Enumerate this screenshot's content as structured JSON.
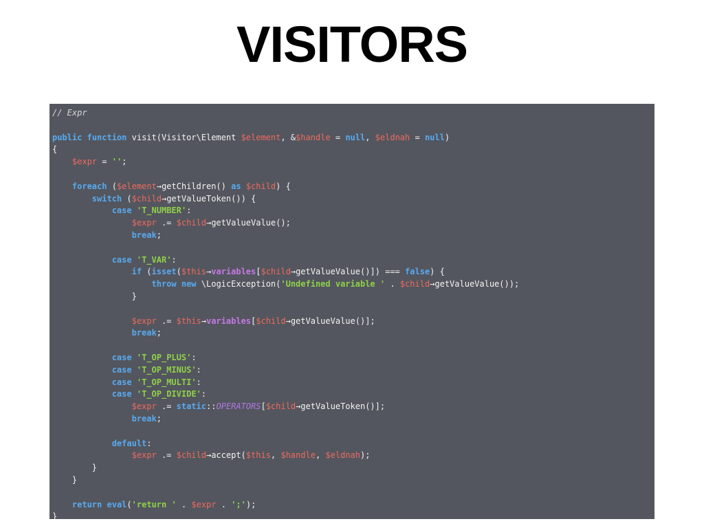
{
  "slide": {
    "title": "VISITORS"
  },
  "colors": {
    "background": "#ffffff",
    "code_background": "#53565e",
    "keyword": "#58aaf0",
    "variable": "#ef6a5f",
    "string": "#8fd14a",
    "property": "#c678e6",
    "constant": "#b179e6",
    "comment": "#d8d8d8",
    "text": "#f4f4f4"
  },
  "code": {
    "language": "php",
    "lines": [
      [
        [
          "cmt",
          "// Expr"
        ]
      ],
      [],
      [
        [
          "kw",
          "public"
        ],
        [
          "plain",
          " "
        ],
        [
          "kw",
          "function"
        ],
        [
          "plain",
          " visit(Visitor\\Element "
        ],
        [
          "var",
          "$element"
        ],
        [
          "plain",
          ", &"
        ],
        [
          "var",
          "$handle"
        ],
        [
          "plain",
          " = "
        ],
        [
          "kw",
          "null"
        ],
        [
          "plain",
          ", "
        ],
        [
          "var",
          "$eldnah"
        ],
        [
          "plain",
          " = "
        ],
        [
          "kw",
          "null"
        ],
        [
          "plain",
          ")"
        ]
      ],
      [
        [
          "plain",
          "{"
        ]
      ],
      [
        [
          "plain",
          "    "
        ],
        [
          "var",
          "$expr"
        ],
        [
          "plain",
          " = "
        ],
        [
          "str",
          "''"
        ],
        [
          "plain",
          ";"
        ]
      ],
      [],
      [
        [
          "plain",
          "    "
        ],
        [
          "kw",
          "foreach"
        ],
        [
          "plain",
          " ("
        ],
        [
          "var",
          "$element"
        ],
        [
          "plain",
          "→getChildren() "
        ],
        [
          "kw",
          "as"
        ],
        [
          "plain",
          " "
        ],
        [
          "var",
          "$child"
        ],
        [
          "plain",
          ") {"
        ]
      ],
      [
        [
          "plain",
          "        "
        ],
        [
          "kw",
          "switch"
        ],
        [
          "plain",
          " ("
        ],
        [
          "var",
          "$child"
        ],
        [
          "plain",
          "→getValueToken()) {"
        ]
      ],
      [
        [
          "plain",
          "            "
        ],
        [
          "kw",
          "case"
        ],
        [
          "plain",
          " "
        ],
        [
          "str",
          "'T_NUMBER'"
        ],
        [
          "plain",
          ":"
        ]
      ],
      [
        [
          "plain",
          "                "
        ],
        [
          "var",
          "$expr"
        ],
        [
          "plain",
          " .= "
        ],
        [
          "var",
          "$child"
        ],
        [
          "plain",
          "→getValueValue();"
        ]
      ],
      [
        [
          "plain",
          "                "
        ],
        [
          "kw",
          "break"
        ],
        [
          "plain",
          ";"
        ]
      ],
      [],
      [
        [
          "plain",
          "            "
        ],
        [
          "kw",
          "case"
        ],
        [
          "plain",
          " "
        ],
        [
          "str",
          "'T_VAR'"
        ],
        [
          "plain",
          ":"
        ]
      ],
      [
        [
          "plain",
          "                "
        ],
        [
          "kw",
          "if"
        ],
        [
          "plain",
          " ("
        ],
        [
          "kw",
          "isset"
        ],
        [
          "plain",
          "("
        ],
        [
          "var",
          "$this"
        ],
        [
          "plain",
          "→"
        ],
        [
          "prop",
          "variables"
        ],
        [
          "plain",
          "["
        ],
        [
          "var",
          "$child"
        ],
        [
          "plain",
          "→getValueValue()]) === "
        ],
        [
          "kw",
          "false"
        ],
        [
          "plain",
          ") {"
        ]
      ],
      [
        [
          "plain",
          "                    "
        ],
        [
          "kw",
          "throw"
        ],
        [
          "plain",
          " "
        ],
        [
          "kw",
          "new"
        ],
        [
          "plain",
          " \\LogicException("
        ],
        [
          "str",
          "'Undefined variable '"
        ],
        [
          "plain",
          " . "
        ],
        [
          "var",
          "$child"
        ],
        [
          "plain",
          "→getValueValue());"
        ]
      ],
      [
        [
          "plain",
          "                }"
        ]
      ],
      [],
      [
        [
          "plain",
          "                "
        ],
        [
          "var",
          "$expr"
        ],
        [
          "plain",
          " .= "
        ],
        [
          "var",
          "$this"
        ],
        [
          "plain",
          "→"
        ],
        [
          "prop",
          "variables"
        ],
        [
          "plain",
          "["
        ],
        [
          "var",
          "$child"
        ],
        [
          "plain",
          "→getValueValue()];"
        ]
      ],
      [
        [
          "plain",
          "                "
        ],
        [
          "kw",
          "break"
        ],
        [
          "plain",
          ";"
        ]
      ],
      [],
      [
        [
          "plain",
          "            "
        ],
        [
          "kw",
          "case"
        ],
        [
          "plain",
          " "
        ],
        [
          "str",
          "'T_OP_PLUS'"
        ],
        [
          "plain",
          ":"
        ]
      ],
      [
        [
          "plain",
          "            "
        ],
        [
          "kw",
          "case"
        ],
        [
          "plain",
          " "
        ],
        [
          "str",
          "'T_OP_MINUS'"
        ],
        [
          "plain",
          ":"
        ]
      ],
      [
        [
          "plain",
          "            "
        ],
        [
          "kw",
          "case"
        ],
        [
          "plain",
          " "
        ],
        [
          "str",
          "'T_OP_MULTI'"
        ],
        [
          "plain",
          ":"
        ]
      ],
      [
        [
          "plain",
          "            "
        ],
        [
          "kw",
          "case"
        ],
        [
          "plain",
          " "
        ],
        [
          "str",
          "'T_OP_DIVIDE'"
        ],
        [
          "plain",
          ":"
        ]
      ],
      [
        [
          "plain",
          "                "
        ],
        [
          "var",
          "$expr"
        ],
        [
          "plain",
          " .= "
        ],
        [
          "kw",
          "static"
        ],
        [
          "plain",
          "::"
        ],
        [
          "const",
          "OPERATORS"
        ],
        [
          "plain",
          "["
        ],
        [
          "var",
          "$child"
        ],
        [
          "plain",
          "→getValueToken()];"
        ]
      ],
      [
        [
          "plain",
          "                "
        ],
        [
          "kw",
          "break"
        ],
        [
          "plain",
          ";"
        ]
      ],
      [],
      [
        [
          "plain",
          "            "
        ],
        [
          "kw",
          "default"
        ],
        [
          "plain",
          ":"
        ]
      ],
      [
        [
          "plain",
          "                "
        ],
        [
          "var",
          "$expr"
        ],
        [
          "plain",
          " .= "
        ],
        [
          "var",
          "$child"
        ],
        [
          "plain",
          "→accept("
        ],
        [
          "var",
          "$this"
        ],
        [
          "plain",
          ", "
        ],
        [
          "var",
          "$handle"
        ],
        [
          "plain",
          ", "
        ],
        [
          "var",
          "$eldnah"
        ],
        [
          "plain",
          ");"
        ]
      ],
      [
        [
          "plain",
          "        }"
        ]
      ],
      [
        [
          "plain",
          "    }"
        ]
      ],
      [],
      [
        [
          "plain",
          "    "
        ],
        [
          "kw",
          "return"
        ],
        [
          "plain",
          " "
        ],
        [
          "kw",
          "eval"
        ],
        [
          "plain",
          "("
        ],
        [
          "str",
          "'return '"
        ],
        [
          "plain",
          " . "
        ],
        [
          "var",
          "$expr"
        ],
        [
          "plain",
          " . "
        ],
        [
          "str",
          "';'"
        ],
        [
          "plain",
          ");"
        ]
      ],
      [
        [
          "plain",
          "}"
        ]
      ]
    ]
  }
}
